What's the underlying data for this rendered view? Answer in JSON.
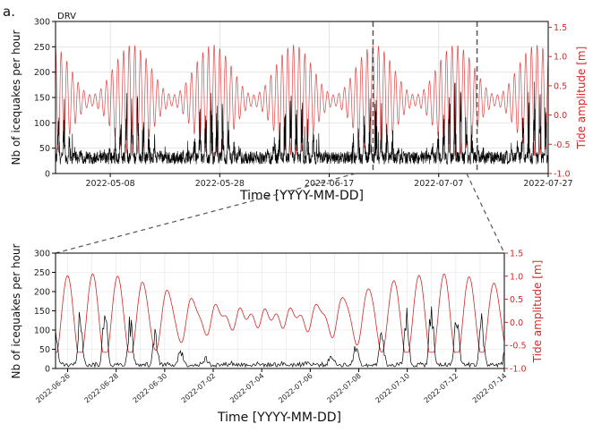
{
  "panel_label": "a.",
  "site_label": "DRV",
  "chart_data": [
    {
      "type": "line",
      "name": "overview",
      "xlabel": "Time [YYYY-MM-DD]",
      "ylabel": "Nb of icequakes per hour",
      "ylabel_right": "Tide amplitude [m]",
      "xticks": [
        "2022-05-08",
        "2022-05-28",
        "2022-06-17",
        "2022-07-07",
        "2022-07-27"
      ],
      "xtick_days": [
        10,
        30,
        50,
        70,
        90
      ],
      "xlim_days": [
        0,
        90
      ],
      "date_start": "2022-04-28",
      "ylim": [
        0,
        300
      ],
      "yticks": [
        0,
        50,
        100,
        150,
        200,
        250,
        300
      ],
      "ylim_right": [
        -1.0,
        1.6
      ],
      "yticks_right": [
        -1.0,
        -0.5,
        0.0,
        0.5,
        1.0,
        1.5
      ],
      "zoom_window": [
        "2022-06-25",
        "2022-07-14"
      ],
      "grid": true,
      "series": [
        {
          "axis": "left",
          "color": "#000000"
        },
        {
          "axis": "right",
          "color": "#d62728"
        }
      ]
    },
    {
      "type": "line",
      "name": "zoom",
      "xlabel": "Time [YYYY-MM-DD]",
      "ylabel": "Nb of icequakes per hour",
      "ylabel_right": "Tide amplitude [m]",
      "xticks": [
        "2022-06-26",
        "2022-06-28",
        "2022-06-30",
        "2022-07-02",
        "2022-07-04",
        "2022-07-06",
        "2022-07-08",
        "2022-07-10",
        "2022-07-12",
        "2022-07-14"
      ],
      "ylim": [
        0,
        300
      ],
      "yticks": [
        0,
        50,
        100,
        150,
        200,
        250,
        300
      ],
      "ylim_right": [
        -1.0,
        1.5
      ],
      "yticks_right": [
        -1.0,
        -0.5,
        0.0,
        0.5,
        1.0,
        1.5
      ],
      "grid": true,
      "series": [
        {
          "axis": "left",
          "color": "#000000"
        },
        {
          "axis": "right",
          "color": "#d62728"
        }
      ]
    }
  ]
}
